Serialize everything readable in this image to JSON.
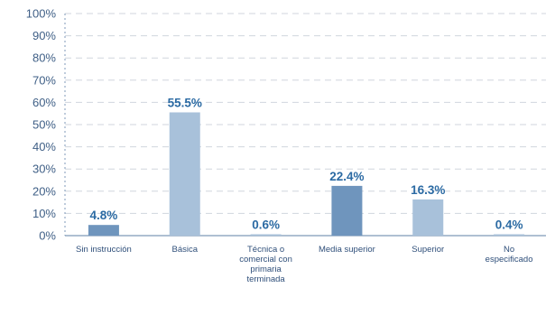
{
  "chart_data": {
    "type": "bar",
    "categories": [
      [
        "Sin instrucción"
      ],
      [
        "Básica"
      ],
      [
        "Técnica o",
        "comercial con",
        "primaria",
        "terminada"
      ],
      [
        "Media superior"
      ],
      [
        "Superior"
      ],
      [
        "No",
        "especificado"
      ]
    ],
    "values": [
      4.8,
      55.5,
      0.6,
      22.4,
      16.3,
      0.4
    ],
    "data_labels": [
      "4.8%",
      "55.5%",
      "0.6%",
      "22.4%",
      "16.3%",
      "0.4%"
    ],
    "ylim": [
      0,
      100
    ],
    "yticks": [
      0,
      10,
      20,
      30,
      40,
      50,
      60,
      70,
      80,
      90,
      100
    ],
    "ytick_labels": [
      "0%",
      "10%",
      "20%",
      "30%",
      "40%",
      "50%",
      "60%",
      "70%",
      "80%",
      "90%",
      "100%"
    ],
    "title": "",
    "xlabel": "",
    "ylabel": "",
    "grid": true,
    "legend": "none",
    "colors": {
      "bar_dark": "#6f95bd",
      "bar_light": "#a8c1da",
      "grid": "#d0d6de",
      "axis": "#7f9ab8",
      "tick_text": "#3f5f86",
      "data_label": "#2b6aa3",
      "category_text": "#2f4f7a"
    },
    "bar_color_keys": [
      "bar_dark",
      "bar_light",
      "bar_light",
      "bar_dark",
      "bar_light",
      "bar_light"
    ]
  }
}
